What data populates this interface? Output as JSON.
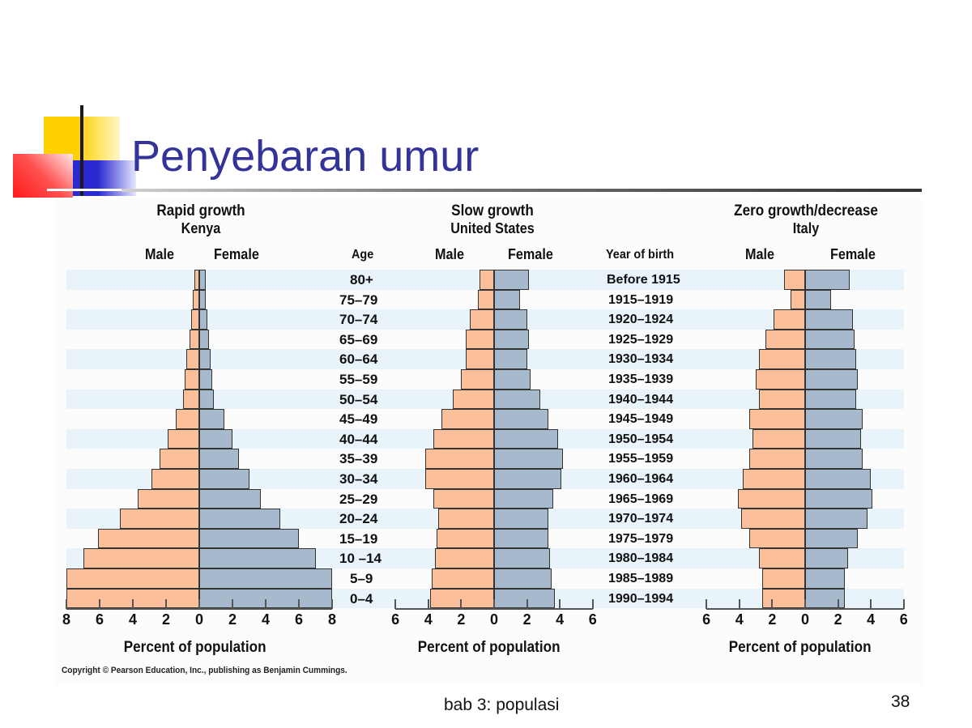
{
  "slide": {
    "title": "Penyebaran umur",
    "footer": "bab 3:  populasi",
    "page_number": "38"
  },
  "figure": {
    "age_header": "Age",
    "year_header": "Year of birth",
    "male_label": "Male",
    "female_label": "Female",
    "axis_title": "Percent of population",
    "copyright": "Copyright © Pearson Education, Inc., publishing as Benjamin Cummings.",
    "colors": {
      "male": "#fbbf99",
      "female": "#a7b9cc",
      "stripe": "#e8f3fa",
      "title": "#333399"
    }
  },
  "chart_data": [
    {
      "type": "bar",
      "orientation": "horizontal-population-pyramid",
      "title": "Rapid growth",
      "subtitle": "Kenya",
      "xlabel": "Percent of population",
      "ylabel": "Age",
      "xlim": [
        -8,
        8
      ],
      "xticks": [
        "8",
        "6",
        "4",
        "2",
        "0",
        "2",
        "4",
        "6",
        "8"
      ],
      "categories": [
        "80+",
        "75–79",
        "70–74",
        "65–69",
        "60–64",
        "55–59",
        "50–54",
        "45–49",
        "40–44",
        "35–39",
        "30–34",
        "25–29",
        "20–24",
        "15–19",
        "10 –14",
        "5–9",
        "0–4"
      ],
      "series": [
        {
          "name": "Male",
          "values": [
            0.3,
            0.4,
            0.5,
            0.6,
            0.8,
            0.9,
            1.0,
            1.4,
            1.9,
            2.4,
            2.9,
            3.7,
            4.8,
            6.1,
            7.0,
            8.0,
            8.0
          ]
        },
        {
          "name": "Female",
          "values": [
            0.4,
            0.4,
            0.5,
            0.6,
            0.7,
            0.8,
            0.9,
            1.5,
            2.0,
            2.4,
            3.0,
            3.7,
            4.9,
            6.0,
            7.0,
            8.0,
            8.0
          ]
        }
      ]
    },
    {
      "type": "bar",
      "orientation": "horizontal-population-pyramid",
      "title": "Slow growth",
      "subtitle": "United States",
      "xlabel": "Percent of population",
      "ylabel": "Age",
      "xlim": [
        -6,
        6
      ],
      "xticks": [
        "6",
        "4",
        "2",
        "0",
        "2",
        "4",
        "6"
      ],
      "categories": [
        "80+",
        "75–79",
        "70–74",
        "65–69",
        "60–64",
        "55–59",
        "50–54",
        "45–49",
        "40–44",
        "35–39",
        "30–34",
        "25–29",
        "20–24",
        "15–19",
        "10 –14",
        "5–9",
        "0–4"
      ],
      "series": [
        {
          "name": "Male",
          "values": [
            0.9,
            1.0,
            1.5,
            1.7,
            1.7,
            2.0,
            2.5,
            3.2,
            3.7,
            4.2,
            4.2,
            3.7,
            3.4,
            3.5,
            3.6,
            3.8,
            3.9
          ]
        },
        {
          "name": "Female",
          "values": [
            2.1,
            1.6,
            2.0,
            2.1,
            2.0,
            2.2,
            2.8,
            3.3,
            3.9,
            4.2,
            4.1,
            3.6,
            3.3,
            3.3,
            3.4,
            3.5,
            3.7
          ]
        }
      ]
    },
    {
      "type": "bar",
      "orientation": "horizontal-population-pyramid",
      "title": "Zero growth/decrease",
      "subtitle": "Italy",
      "xlabel": "Percent of population",
      "ylabel": "Year of birth",
      "xlim": [
        -6,
        6
      ],
      "xticks": [
        "6",
        "4",
        "2",
        "0",
        "2",
        "4",
        "6"
      ],
      "categories": [
        "Before 1915",
        "1915–1919",
        "1920–1924",
        "1925–1929",
        "1930–1934",
        "1935–1939",
        "1940–1944",
        "1945–1949",
        "1950–1954",
        "1955–1959",
        "1960–1964",
        "1965–1969",
        "1970–1974",
        "1975–1979",
        "1980–1984",
        "1985–1989",
        "1990–1994"
      ],
      "series": [
        {
          "name": "Male",
          "values": [
            1.3,
            0.9,
            1.9,
            2.4,
            2.8,
            3.0,
            2.8,
            3.4,
            3.2,
            3.4,
            3.8,
            4.1,
            3.9,
            3.4,
            2.8,
            2.6,
            2.6
          ]
        },
        {
          "name": "Female",
          "values": [
            2.7,
            1.6,
            2.9,
            3.0,
            3.1,
            3.2,
            3.1,
            3.5,
            3.4,
            3.5,
            4.0,
            4.1,
            3.8,
            3.2,
            2.6,
            2.4,
            2.4
          ]
        }
      ]
    }
  ]
}
